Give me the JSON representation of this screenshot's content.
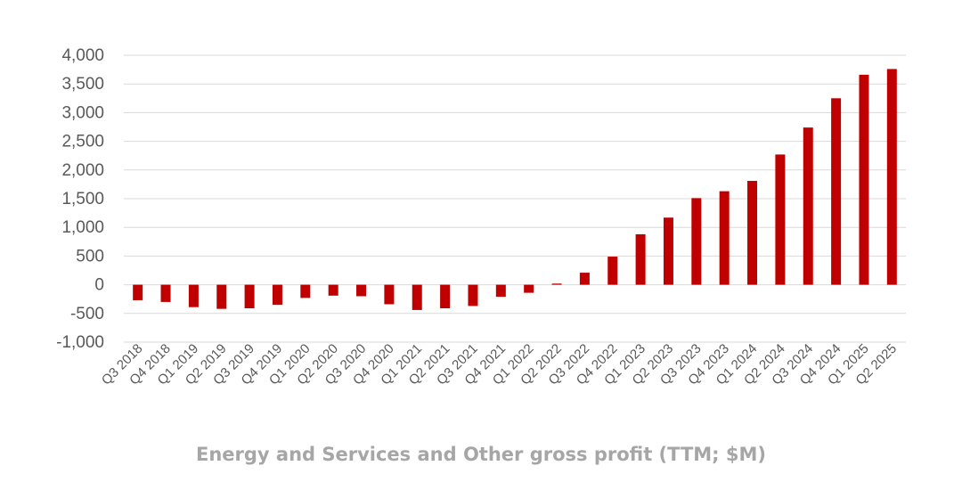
{
  "chart_data": {
    "type": "bar",
    "title": "Energy and Services and Other gross profit (TTM; $M)",
    "xlabel": "",
    "ylabel": "",
    "ylim": [
      -1000,
      4000
    ],
    "yticks": [
      -1000,
      -500,
      0,
      500,
      1000,
      1500,
      2000,
      2500,
      3000,
      3500,
      4000
    ],
    "ytick_labels": [
      "-1,000",
      "-500",
      "0",
      "500",
      "1,000",
      "1,500",
      "2,000",
      "2,500",
      "3,000",
      "3,500",
      "4,000"
    ],
    "grid": true,
    "legend": "none",
    "bar_color": "#c00000",
    "grid_color": "#d9d9d9",
    "text_color": "#595959",
    "title_color": "#a6a6a6",
    "categories": [
      "Q3 2018",
      "Q4 2018",
      "Q1 2019",
      "Q2 2019",
      "Q3 2019",
      "Q4 2019",
      "Q1 2020",
      "Q2 2020",
      "Q3 2020",
      "Q4 2020",
      "Q1 2021",
      "Q2 2021",
      "Q3 2021",
      "Q4 2021",
      "Q1 2022",
      "Q2 2022",
      "Q3 2022",
      "Q4 2022",
      "Q1 2023",
      "Q2 2023",
      "Q3 2023",
      "Q4 2023",
      "Q1 2024",
      "Q2 2024",
      "Q3 2024",
      "Q4 2024",
      "Q1 2025",
      "Q2 2025"
    ],
    "values": [
      -270,
      -300,
      -390,
      -420,
      -410,
      -350,
      -230,
      -190,
      -200,
      -340,
      -440,
      -410,
      -370,
      -210,
      -140,
      20,
      210,
      490,
      880,
      1170,
      1510,
      1630,
      1810,
      2270,
      2740,
      3250,
      3660,
      3760
    ]
  }
}
